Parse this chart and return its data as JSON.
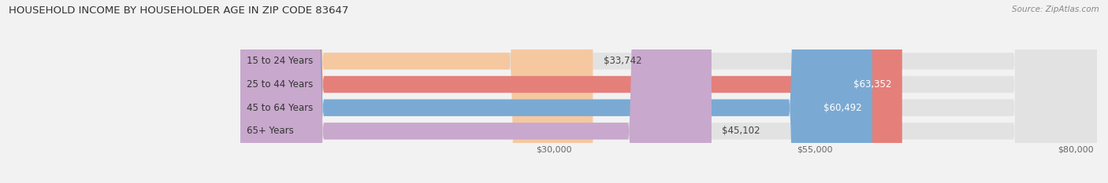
{
  "title": "HOUSEHOLD INCOME BY HOUSEHOLDER AGE IN ZIP CODE 83647",
  "source": "Source: ZipAtlas.com",
  "categories": [
    "15 to 24 Years",
    "25 to 44 Years",
    "45 to 64 Years",
    "65+ Years"
  ],
  "values": [
    33742,
    63352,
    60492,
    45102
  ],
  "bar_colors": [
    "#f5c8a0",
    "#e57f7a",
    "#7aaad4",
    "#c8a8cc"
  ],
  "label_colors": [
    "#444444",
    "#444444",
    "#444444",
    "#444444"
  ],
  "value_label_colors_inside": [
    "#555555",
    "#ffffff",
    "#ffffff",
    "#555555"
  ],
  "xmin": -14000,
  "xmax": 82000,
  "data_xstart": 0,
  "xticks": [
    30000,
    55000,
    80000
  ],
  "xtick_labels": [
    "$30,000",
    "$55,000",
    "$80,000"
  ],
  "background_color": "#f2f2f2",
  "bar_background": "#e2e2e2",
  "figsize": [
    14.06,
    2.33
  ],
  "dpi": 100,
  "bar_height": 0.72,
  "rounding_size": 8000
}
